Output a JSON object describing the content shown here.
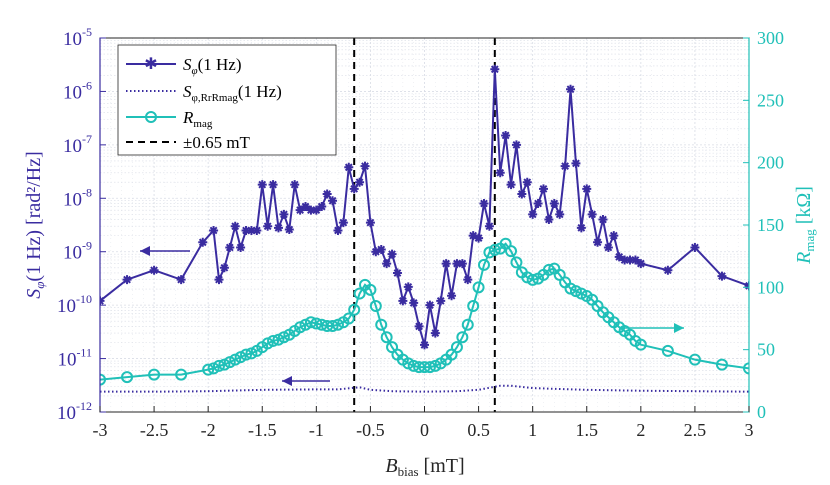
{
  "chart_data": {
    "type": "line",
    "xlabel_main": "B",
    "xlabel_sub": "bias",
    "xlabel_unit": " [mT]",
    "xlim": [
      -3,
      3
    ],
    "x_ticks": [
      -3,
      -2.5,
      -2,
      -1.5,
      -1,
      -0.5,
      0,
      0.5,
      1,
      1.5,
      2,
      2.5,
      3
    ],
    "x_tick_labels": [
      "-3",
      "-2.5",
      "-2",
      "-1.5",
      "-1",
      "-0.5",
      "0",
      "0.5",
      "1",
      "1.5",
      "2",
      "2.5",
      "3"
    ],
    "y_left": {
      "scale": "log",
      "ylim": [
        1e-12,
        1e-05
      ],
      "label_main": "S",
      "label_sub": "φ",
      "label_rest": "(1 Hz)  [rad²/Hz]",
      "ticks": [
        {
          "base": "10",
          "exp": "-12",
          "value": 1e-12
        },
        {
          "base": "10",
          "exp": "-11",
          "value": 1e-11
        },
        {
          "base": "10",
          "exp": "-10",
          "value": 1e-10
        },
        {
          "base": "10",
          "exp": "-9",
          "value": 1e-09
        },
        {
          "base": "10",
          "exp": "-8",
          "value": 1e-08
        },
        {
          "base": "10",
          "exp": "-7",
          "value": 1e-07
        },
        {
          "base": "10",
          "exp": "-6",
          "value": 1e-06
        },
        {
          "base": "10",
          "exp": "-5",
          "value": 1e-05
        }
      ]
    },
    "y_right": {
      "scale": "linear",
      "ylim": [
        0,
        300
      ],
      "label_main": "R",
      "label_sub": "mag",
      "label_rest": " [kΩ]",
      "ticks": [
        0,
        50,
        100,
        150,
        200,
        250,
        300
      ],
      "tick_labels": [
        "0",
        "50",
        "100",
        "150",
        "200",
        "250",
        "300"
      ]
    },
    "grid": true,
    "legend_position": "top-left",
    "legend": [
      {
        "label_main": "S",
        "label_sub": "φ",
        "label_rest": "(1 Hz)"
      },
      {
        "label_main": "S",
        "label_sub": "φ,RrRmag",
        "label_rest": "(1 Hz)"
      },
      {
        "label_main": "R",
        "label_sub": "mag",
        "label_rest": ""
      },
      {
        "label_main": "±0.65 mT",
        "label_sub": "",
        "label_rest": ""
      }
    ],
    "colors": {
      "noise": "#3a2ca0",
      "noise_floor": "#3a2ca0",
      "rmag": "#20c0b8",
      "left_axis": "#3a2ca0",
      "right_axis": "#20c0b8",
      "vline": "#000000",
      "grid": "#d9dde6"
    },
    "vlines": [
      -0.65,
      0.65
    ],
    "series": [
      {
        "name": "S_phi(1 Hz)",
        "axis": "left",
        "marker": "star",
        "x": [
          -3,
          -2.75,
          -2.5,
          -2.25,
          -2.05,
          -1.95,
          -1.9,
          -1.85,
          -1.8,
          -1.75,
          -1.7,
          -1.65,
          -1.6,
          -1.55,
          -1.5,
          -1.45,
          -1.4,
          -1.35,
          -1.3,
          -1.25,
          -1.2,
          -1.15,
          -1.1,
          -1.05,
          -1.0,
          -0.95,
          -0.9,
          -0.85,
          -0.8,
          -0.75,
          -0.7,
          -0.65,
          -0.6,
          -0.55,
          -0.5,
          -0.45,
          -0.4,
          -0.35,
          -0.3,
          -0.25,
          -0.2,
          -0.15,
          -0.1,
          -0.05,
          0.0,
          0.05,
          0.1,
          0.15,
          0.2,
          0.25,
          0.3,
          0.35,
          0.4,
          0.45,
          0.5,
          0.55,
          0.6,
          0.65,
          0.7,
          0.75,
          0.8,
          0.85,
          0.9,
          0.95,
          1.0,
          1.05,
          1.1,
          1.15,
          1.2,
          1.25,
          1.3,
          1.35,
          1.4,
          1.45,
          1.5,
          1.55,
          1.6,
          1.65,
          1.7,
          1.75,
          1.8,
          1.85,
          1.9,
          1.95,
          2.0,
          2.25,
          2.5,
          2.75,
          3.0
        ],
        "y": [
          1.2e-10,
          3e-10,
          4.5e-10,
          3e-10,
          1.5e-09,
          2.5e-09,
          3e-10,
          5e-10,
          1.2e-09,
          3e-09,
          1.2e-09,
          2.5e-09,
          2.5e-09,
          2.5e-09,
          1.8e-08,
          3e-09,
          1.8e-08,
          2.8e-09,
          5e-09,
          2.6e-09,
          1.8e-08,
          6e-09,
          7e-09,
          6e-09,
          6e-09,
          7e-09,
          1.2e-08,
          9e-09,
          2.5e-09,
          3.5e-09,
          3.8e-08,
          1.5e-08,
          2e-08,
          4e-08,
          3.5e-09,
          1e-09,
          1.1e-09,
          6e-10,
          9e-10,
          4e-10,
          1.2e-10,
          2.2e-10,
          1.1e-10,
          4e-11,
          1.8e-11,
          1e-10,
          3e-11,
          1.2e-10,
          6e-10,
          1.5e-10,
          6e-10,
          6e-10,
          3e-10,
          2e-09,
          1.8e-09,
          8e-09,
          3e-09,
          2.6e-06,
          3e-08,
          1.5e-07,
          1.8e-08,
          1e-07,
          1.2e-08,
          2e-08,
          5e-09,
          8e-09,
          1.5e-08,
          4e-09,
          8e-09,
          5e-09,
          4e-08,
          1.1e-06,
          4.5e-08,
          2.8e-09,
          1.5e-08,
          5e-09,
          1.5e-09,
          4e-09,
          1.2e-09,
          2e-09,
          8e-10,
          7e-10,
          7e-10,
          7e-10,
          6e-10,
          4.5e-10,
          1.2e-09,
          3.5e-10,
          2.3e-10
        ]
      },
      {
        "name": "S_phi,RrRmag(1 Hz)",
        "axis": "left",
        "marker": "none",
        "style": "dotted",
        "x": [
          -3,
          -2.5,
          -2,
          -1.5,
          -1,
          -0.8,
          -0.6,
          -0.5,
          -0.3,
          0,
          0.3,
          0.5,
          0.7,
          0.8,
          1,
          1.5,
          2,
          2.5,
          3
        ],
        "y": [
          2.4e-12,
          2.4e-12,
          2.45e-12,
          2.6e-12,
          2.65e-12,
          2.65e-12,
          2.9e-12,
          2.6e-12,
          2.45e-12,
          2.4e-12,
          2.45e-12,
          2.6e-12,
          3.1e-12,
          3.1e-12,
          2.8e-12,
          2.6e-12,
          2.5e-12,
          2.45e-12,
          2.4e-12
        ]
      },
      {
        "name": "R_mag",
        "axis": "right",
        "marker": "circle",
        "x": [
          -3,
          -2.75,
          -2.5,
          -2.25,
          -2,
          -1.95,
          -1.9,
          -1.85,
          -1.8,
          -1.75,
          -1.7,
          -1.65,
          -1.6,
          -1.55,
          -1.5,
          -1.45,
          -1.4,
          -1.35,
          -1.3,
          -1.25,
          -1.2,
          -1.15,
          -1.1,
          -1.05,
          -1.0,
          -0.95,
          -0.9,
          -0.85,
          -0.8,
          -0.75,
          -0.7,
          -0.65,
          -0.6,
          -0.55,
          -0.5,
          -0.45,
          -0.4,
          -0.35,
          -0.3,
          -0.25,
          -0.2,
          -0.15,
          -0.1,
          -0.05,
          0.0,
          0.05,
          0.1,
          0.15,
          0.2,
          0.25,
          0.3,
          0.35,
          0.4,
          0.45,
          0.5,
          0.55,
          0.6,
          0.65,
          0.7,
          0.75,
          0.8,
          0.85,
          0.9,
          0.95,
          1.0,
          1.05,
          1.1,
          1.15,
          1.2,
          1.25,
          1.3,
          1.35,
          1.4,
          1.45,
          1.5,
          1.55,
          1.6,
          1.65,
          1.7,
          1.75,
          1.8,
          1.85,
          1.9,
          1.95,
          2.0,
          2.25,
          2.5,
          2.75,
          3.0
        ],
        "y": [
          26,
          28,
          30,
          30,
          34,
          35,
          37,
          38,
          40,
          42,
          44,
          46,
          47,
          49,
          52,
          55,
          57,
          58,
          60,
          62,
          65,
          68,
          70,
          72,
          71,
          70,
          69,
          69,
          70,
          72,
          75,
          82,
          95,
          102,
          98,
          85,
          70,
          60,
          52,
          46,
          42,
          39,
          37,
          36,
          36,
          36,
          37,
          39,
          42,
          46,
          52,
          60,
          70,
          85,
          100,
          118,
          128,
          130,
          131,
          135,
          129,
          120,
          112,
          108,
          106,
          107,
          110,
          114,
          115,
          110,
          104,
          99,
          97,
          95,
          93,
          90,
          85,
          80,
          76,
          72,
          68,
          65,
          62,
          57,
          54,
          49,
          42,
          38,
          35
        ]
      }
    ]
  }
}
